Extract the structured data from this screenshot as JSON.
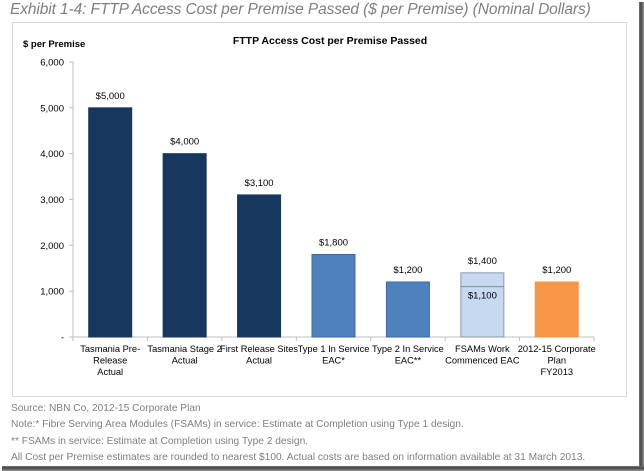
{
  "exhibit_title": "Exhibit 1-4: FTTP Access Cost per Premise Passed ($ per Premise) (Nominal Dollars)",
  "chart_data": {
    "type": "bar",
    "title": "FTTP Access Cost per Premise Passed",
    "ylabel": "$ per Premise",
    "xlabel": "",
    "ylim": [
      0,
      6000
    ],
    "yticks": [
      0,
      1000,
      2000,
      3000,
      4000,
      5000,
      6000
    ],
    "ytick_labels": [
      "-",
      "1,000",
      "2,000",
      "3,000",
      "4,000",
      "5,000",
      "6,000"
    ],
    "grid": false,
    "categories": [
      [
        "Tasmania Pre-",
        "Release",
        "Actual"
      ],
      [
        "Tasmania Stage 2",
        "Actual"
      ],
      [
        "First Release Sites",
        "Actual"
      ],
      [
        "Type 1 In Service",
        "EAC*"
      ],
      [
        "Type 2 In Service",
        "EAC**"
      ],
      [
        "FSAMs Work",
        "Commenced EAC"
      ],
      [
        "2012-15 Corporate",
        "Plan",
        "FY2013"
      ]
    ],
    "values": [
      5000,
      4000,
      3100,
      1800,
      1200,
      1400,
      1200
    ],
    "data_labels": [
      "$5,000",
      "$4,000",
      "$3,100",
      "$1,800",
      "$1,200",
      "$1,400",
      "$1,200"
    ],
    "inner_marker": {
      "category_index": 5,
      "value": 1100,
      "label": "$1,100"
    },
    "colors": [
      "#17375e",
      "#17375e",
      "#17375e",
      "#4f81bd",
      "#4f81bd",
      "#c6d9f1",
      "#f79646"
    ],
    "border_colors": [
      "#17375e",
      "#17375e",
      "#17375e",
      "#3a6aa5",
      "#3a6aa5",
      "#8c9aa8",
      "#f79646"
    ]
  },
  "notes": [
    "Source: NBN Co, 2012-15 Corporate Plan",
    "Note:* Fibre Serving Area Modules (FSAMs) in service: Estimate at Completion using Type 1 design.",
    "** FSAMs in service: Estimate at Completion using Type 2 design.",
    "All Cost per Premise estimates are rounded to nearest $100. Actual costs are based on information available at 31 March 2013."
  ]
}
